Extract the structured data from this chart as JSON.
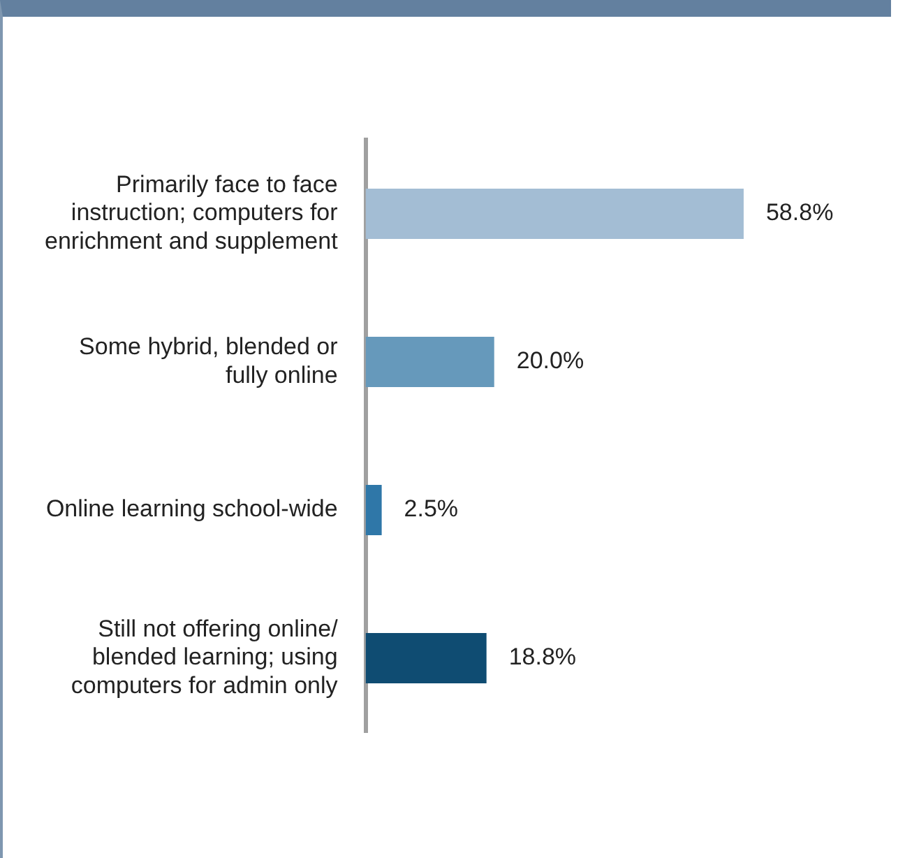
{
  "chart_data": {
    "type": "bar",
    "orientation": "horizontal",
    "categories": [
      "Primarily face to face instruction; computers for enrichment and supplement",
      "Some hybrid, blended or fully online",
      "Online learning school-wide",
      "Still not offering online/ blended learning; using computers for admin only"
    ],
    "values": [
      58.8,
      20.0,
      2.5,
      18.8
    ],
    "colors": [
      "#a3bdd4",
      "#6699bb",
      "#2f77a8",
      "#0f4c72"
    ],
    "value_labels": [
      "58.8%",
      "20.0%",
      "2.5%",
      "18.8%"
    ],
    "legend": false
  }
}
